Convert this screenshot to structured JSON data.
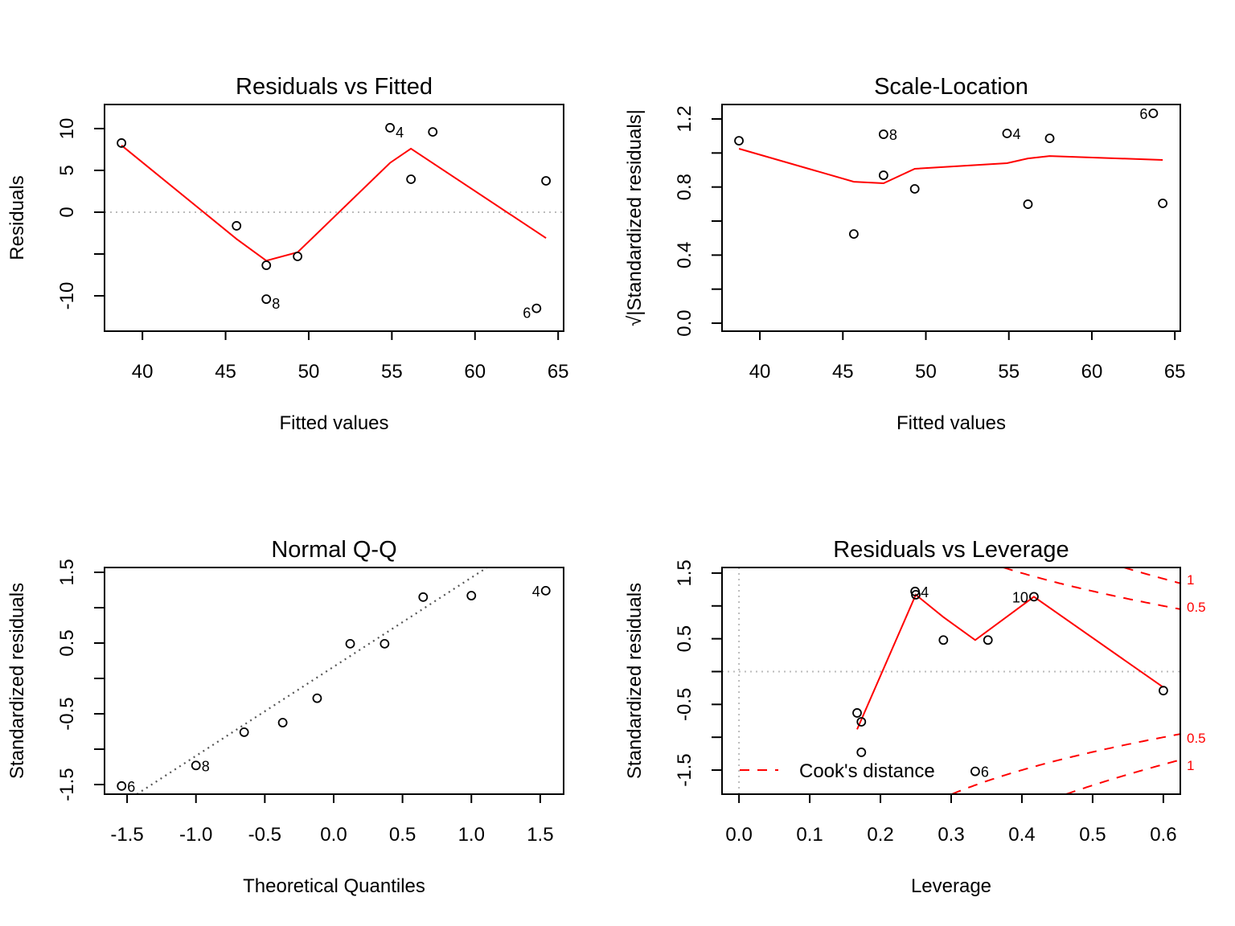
{
  "chart_data": [
    {
      "type": "scatter",
      "title": "Residuals vs Fitted",
      "xlabel": "Fitted values",
      "ylabel": "Residuals",
      "xlim": [
        37.72,
        65.33
      ],
      "ylim": [
        -14.23,
        12.88
      ],
      "xticks": [
        {
          "value": 40,
          "label": "40"
        },
        {
          "value": 45,
          "label": "45"
        },
        {
          "value": 50,
          "label": "50"
        },
        {
          "value": 55,
          "label": "55"
        },
        {
          "value": 60,
          "label": "60"
        },
        {
          "value": 65,
          "label": "65"
        }
      ],
      "yticks": [
        {
          "value": -10,
          "label": "-10"
        },
        {
          "value": -5,
          "label": ""
        },
        {
          "value": 0,
          "label": "0"
        },
        {
          "value": 5,
          "label": "5"
        },
        {
          "value": 10,
          "label": "10"
        }
      ],
      "hline": 0,
      "points": [
        {
          "x": 38.74,
          "y": 8.27,
          "label": ""
        },
        {
          "x": 45.66,
          "y": -1.63,
          "label": ""
        },
        {
          "x": 47.45,
          "y": -6.35,
          "label": ""
        },
        {
          "x": 47.45,
          "y": -10.4,
          "label": "8",
          "label_pos": "right"
        },
        {
          "x": 49.33,
          "y": -5.29,
          "label": ""
        },
        {
          "x": 54.89,
          "y": 10.1,
          "label": "4",
          "label_pos": "right"
        },
        {
          "x": 56.15,
          "y": 3.94,
          "label": ""
        },
        {
          "x": 57.46,
          "y": 9.6,
          "label": ""
        },
        {
          "x": 63.7,
          "y": -11.5,
          "label": "6",
          "label_pos": "left"
        },
        {
          "x": 64.27,
          "y": 3.75,
          "label": ""
        }
      ],
      "smooth": [
        [
          38.74,
          8.0
        ],
        [
          45.66,
          -3.2
        ],
        [
          47.45,
          -5.8
        ],
        [
          49.33,
          -4.8
        ],
        [
          54.89,
          5.9
        ],
        [
          56.15,
          7.6
        ],
        [
          64.27,
          -3.1
        ]
      ],
      "smooth_color": "#ff0000"
    },
    {
      "type": "scatter",
      "title": "Scale-Location",
      "xlabel": "Fitted values",
      "ylabel": "√|Standardized residuals|",
      "xlim": [
        37.72,
        65.33
      ],
      "ylim": [
        -0.047,
        1.285
      ],
      "xticks": [
        {
          "value": 40,
          "label": "40"
        },
        {
          "value": 45,
          "label": "45"
        },
        {
          "value": 50,
          "label": "50"
        },
        {
          "value": 55,
          "label": "55"
        },
        {
          "value": 60,
          "label": "60"
        },
        {
          "value": 65,
          "label": "65"
        }
      ],
      "yticks": [
        {
          "value": 0,
          "label": "0.0"
        },
        {
          "value": 0.2,
          "label": ""
        },
        {
          "value": 0.4,
          "label": "0.4"
        },
        {
          "value": 0.6,
          "label": ""
        },
        {
          "value": 0.8,
          "label": "0.8"
        },
        {
          "value": 1.0,
          "label": ""
        },
        {
          "value": 1.2,
          "label": "1.2"
        }
      ],
      "points": [
        {
          "x": 38.74,
          "y": 1.072,
          "label": ""
        },
        {
          "x": 45.66,
          "y": 0.524,
          "label": ""
        },
        {
          "x": 47.45,
          "y": 0.869,
          "label": ""
        },
        {
          "x": 47.45,
          "y": 1.11,
          "label": "8",
          "label_pos": "right"
        },
        {
          "x": 49.33,
          "y": 0.789,
          "label": ""
        },
        {
          "x": 54.89,
          "y": 1.115,
          "label": "4",
          "label_pos": "right"
        },
        {
          "x": 56.15,
          "y": 0.699,
          "label": ""
        },
        {
          "x": 57.46,
          "y": 1.086,
          "label": ""
        },
        {
          "x": 63.7,
          "y": 1.233,
          "label": "6",
          "label_pos": "left"
        },
        {
          "x": 64.27,
          "y": 0.704,
          "label": ""
        }
      ],
      "smooth": [
        [
          38.74,
          1.025
        ],
        [
          45.66,
          0.831
        ],
        [
          47.45,
          0.822
        ],
        [
          49.33,
          0.907
        ],
        [
          54.89,
          0.94
        ],
        [
          56.15,
          0.968
        ],
        [
          57.46,
          0.982
        ],
        [
          64.27,
          0.959
        ]
      ],
      "smooth_color": "#ff0000"
    },
    {
      "type": "scatter",
      "title": "Normal Q-Q",
      "xlabel": "Theoretical Quantiles",
      "ylabel": "Standardized residuals",
      "xlim": [
        -1.664,
        1.67
      ],
      "ylim": [
        -1.636,
        1.568
      ],
      "xticks": [
        {
          "value": -1.5,
          "label": "-1.5"
        },
        {
          "value": -1.0,
          "label": "-1.0"
        },
        {
          "value": -0.5,
          "label": "-0.5"
        },
        {
          "value": 0,
          "label": "0.0"
        },
        {
          "value": 0.5,
          "label": "0.5"
        },
        {
          "value": 1.0,
          "label": "1.0"
        },
        {
          "value": 1.5,
          "label": "1.5"
        }
      ],
      "yticks": [
        {
          "value": -1.5,
          "label": "-1.5"
        },
        {
          "value": -1.0,
          "label": ""
        },
        {
          "value": -0.5,
          "label": "-0.5"
        },
        {
          "value": 0,
          "label": ""
        },
        {
          "value": 0.5,
          "label": "0.5"
        },
        {
          "value": 1.0,
          "label": ""
        },
        {
          "value": 1.5,
          "label": "1.5"
        }
      ],
      "points": [
        {
          "x": -1.54,
          "y": -1.52,
          "label": "6",
          "label_pos": "right"
        },
        {
          "x": -1.0,
          "y": -1.23,
          "label": "8",
          "label_pos": "right"
        },
        {
          "x": -0.65,
          "y": -0.76,
          "label": ""
        },
        {
          "x": -0.37,
          "y": -0.625,
          "label": ""
        },
        {
          "x": -0.12,
          "y": -0.28,
          "label": ""
        },
        {
          "x": 0.12,
          "y": 0.49,
          "label": ""
        },
        {
          "x": 0.37,
          "y": 0.49,
          "label": ""
        },
        {
          "x": 0.65,
          "y": 1.15,
          "label": ""
        },
        {
          "x": 1.0,
          "y": 1.17,
          "label": ""
        },
        {
          "x": 1.54,
          "y": 1.24,
          "label": "4",
          "label_pos": "left"
        }
      ],
      "qqline": {
        "intercept": 0.165,
        "slope": 1.26,
        "color": "#555555"
      }
    },
    {
      "type": "scatter",
      "title": "Residuals vs Leverage",
      "xlabel": "Leverage",
      "ylabel": "Standardized residuals",
      "xlim": [
        -0.024,
        0.624
      ],
      "ylim": [
        -1.867,
        1.585
      ],
      "xticks": [
        {
          "value": 0,
          "label": "0.0"
        },
        {
          "value": 0.1,
          "label": "0.1"
        },
        {
          "value": 0.2,
          "label": "0.2"
        },
        {
          "value": 0.3,
          "label": "0.3"
        },
        {
          "value": 0.4,
          "label": "0.4"
        },
        {
          "value": 0.5,
          "label": "0.5"
        },
        {
          "value": 0.6,
          "label": "0.6"
        }
      ],
      "yticks": [
        {
          "value": -1.5,
          "label": "-1.5"
        },
        {
          "value": -1.0,
          "label": ""
        },
        {
          "value": -0.5,
          "label": "-0.5"
        },
        {
          "value": 0,
          "label": ""
        },
        {
          "value": 0.5,
          "label": "0.5"
        },
        {
          "value": 1.0,
          "label": ""
        },
        {
          "value": 1.5,
          "label": "1.5"
        }
      ],
      "hline": 0,
      "vline": 0,
      "points": [
        {
          "x": 0.167,
          "y": -0.63,
          "label": ""
        },
        {
          "x": 0.173,
          "y": -0.765,
          "label": ""
        },
        {
          "x": 0.173,
          "y": -1.23,
          "label": ""
        },
        {
          "x": 0.249,
          "y": 1.22,
          "label": "4",
          "label_pos": "right"
        },
        {
          "x": 0.25,
          "y": 1.17,
          "label": ""
        },
        {
          "x": 0.289,
          "y": 0.48,
          "label": ""
        },
        {
          "x": 0.334,
          "y": -1.52,
          "label": "6",
          "label_pos": "right"
        },
        {
          "x": 0.352,
          "y": 0.48,
          "label": ""
        },
        {
          "x": 0.417,
          "y": 1.14,
          "label": "10",
          "label_pos": "left"
        },
        {
          "x": 0.6,
          "y": -0.29,
          "label": ""
        }
      ],
      "smooth": [
        [
          0.167,
          -0.88
        ],
        [
          0.25,
          1.17
        ],
        [
          0.289,
          0.83
        ],
        [
          0.334,
          0.48
        ],
        [
          0.417,
          1.14
        ],
        [
          0.6,
          -0.24
        ]
      ],
      "smooth_color": "#ff0000",
      "cooks_levels": [
        {
          "value": 0.5,
          "label": "0.5"
        },
        {
          "value": 1,
          "label": "1"
        }
      ],
      "legend": {
        "label": "Cook's distance",
        "position": "bottom-left",
        "color": "#ff0000"
      }
    }
  ]
}
